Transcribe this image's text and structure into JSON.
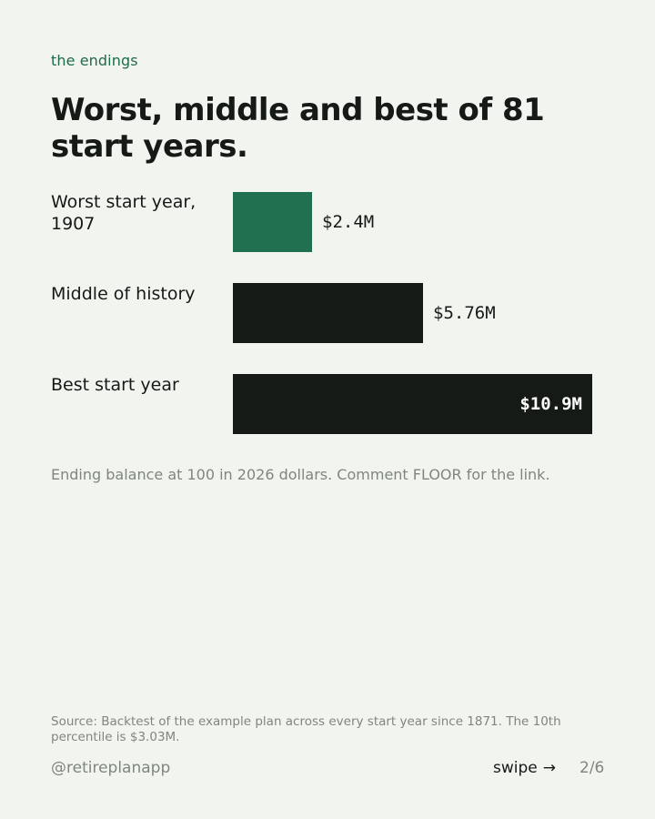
{
  "eyebrow": "the endings",
  "title": "Worst, middle and best of 81 start years.",
  "chart_data": {
    "type": "bar",
    "orientation": "horizontal",
    "categories": [
      "Worst start year, 1907",
      "Middle of history",
      "Best start year"
    ],
    "values": [
      2.4,
      5.76,
      10.9
    ],
    "value_labels": [
      "$2.4M",
      "$5.76M",
      "$10.9M"
    ],
    "unit": "$M",
    "xlim": [
      0,
      10.9
    ],
    "colors": [
      "#217150",
      "#161a17",
      "#161a17"
    ],
    "grid": false
  },
  "caption": "Ending balance at 100 in 2026 dollars. Comment FLOOR for the link.",
  "source": "Source: Backtest of the example plan across every start year since 1871. The 10th percentile is $3.03M.",
  "footer": {
    "handle": "@retireplanapp",
    "swipe_label": "swipe",
    "swipe_icon": "arrow-right-icon",
    "page": "2/6"
  }
}
